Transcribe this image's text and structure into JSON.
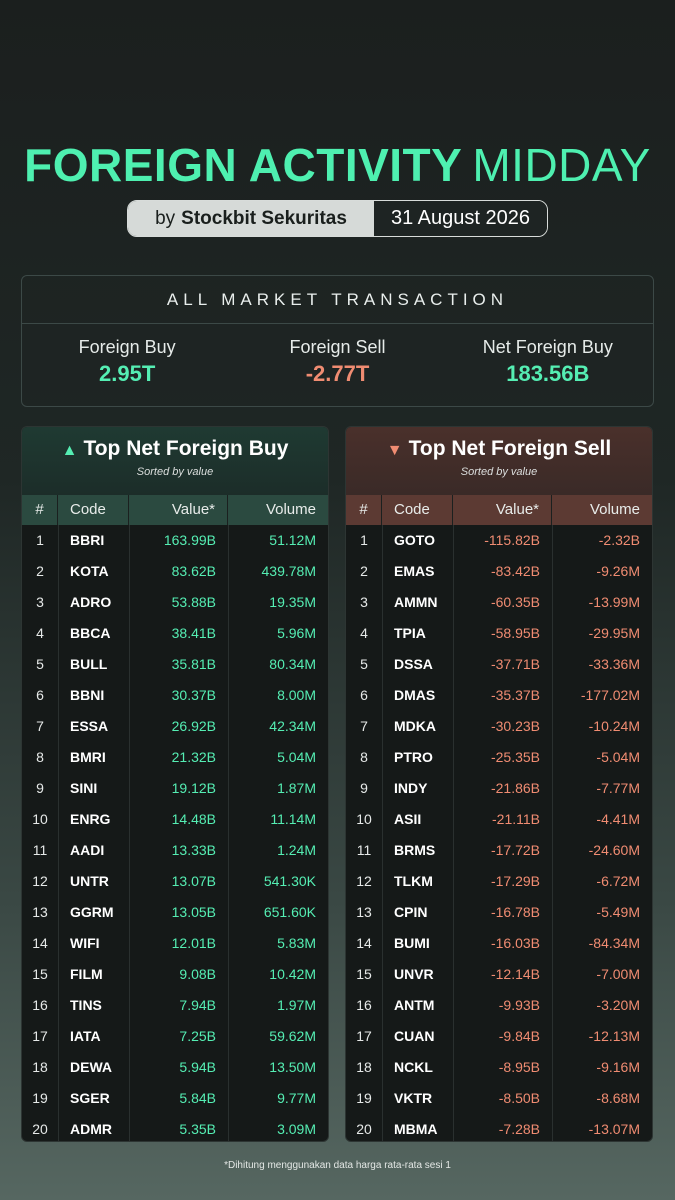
{
  "header": {
    "title_bold": "FOREIGN ACTIVITY",
    "title_light": "MIDDAY",
    "by_prefix": "by",
    "by_brand": "Stockbit Sekuritas",
    "date": "31 August 2026"
  },
  "summary": {
    "heading": "ALL MARKET TRANSACTION",
    "items": [
      {
        "label": "Foreign Buy",
        "value": "2.95T",
        "color": "#55eeb3"
      },
      {
        "label": "Foreign Sell",
        "value": "-2.77T",
        "color": "#f08c72"
      },
      {
        "label": "Net Foreign Buy",
        "value": "183.56B",
        "color": "#55eeb3"
      }
    ]
  },
  "buy": {
    "title": "Top Net Foreign Buy",
    "icon": "up-triangle-icon",
    "subtitle": "Sorted by value",
    "accent": "#55eeb3",
    "columns": [
      "#",
      "Code",
      "Value*",
      "Volume"
    ],
    "rows": [
      [
        "1",
        "BBRI",
        "163.99B",
        "51.12M"
      ],
      [
        "2",
        "KOTA",
        "83.62B",
        "439.78M"
      ],
      [
        "3",
        "ADRO",
        "53.88B",
        "19.35M"
      ],
      [
        "4",
        "BBCA",
        "38.41B",
        "5.96M"
      ],
      [
        "5",
        "BULL",
        "35.81B",
        "80.34M"
      ],
      [
        "6",
        "BBNI",
        "30.37B",
        "8.00M"
      ],
      [
        "7",
        "ESSA",
        "26.92B",
        "42.34M"
      ],
      [
        "8",
        "BMRI",
        "21.32B",
        "5.04M"
      ],
      [
        "9",
        "SINI",
        "19.12B",
        "1.87M"
      ],
      [
        "10",
        "ENRG",
        "14.48B",
        "11.14M"
      ],
      [
        "11",
        "AADI",
        "13.33B",
        "1.24M"
      ],
      [
        "12",
        "UNTR",
        "13.07B",
        "541.30K"
      ],
      [
        "13",
        "GGRM",
        "13.05B",
        "651.60K"
      ],
      [
        "14",
        "WIFI",
        "12.01B",
        "5.83M"
      ],
      [
        "15",
        "FILM",
        "9.08B",
        "10.42M"
      ],
      [
        "16",
        "TINS",
        "7.94B",
        "1.97M"
      ],
      [
        "17",
        "IATA",
        "7.25B",
        "59.62M"
      ],
      [
        "18",
        "DEWA",
        "5.94B",
        "13.50M"
      ],
      [
        "19",
        "SGER",
        "5.84B",
        "9.77M"
      ],
      [
        "20",
        "ADMR",
        "5.35B",
        "3.09M"
      ]
    ]
  },
  "sell": {
    "title": "Top Net Foreign Sell",
    "icon": "down-triangle-icon",
    "subtitle": "Sorted by value",
    "accent": "#f08c72",
    "columns": [
      "#",
      "Code",
      "Value*",
      "Volume"
    ],
    "rows": [
      [
        "1",
        "GOTO",
        "-115.82B",
        "-2.32B"
      ],
      [
        "2",
        "EMAS",
        "-83.42B",
        "-9.26M"
      ],
      [
        "3",
        "AMMN",
        "-60.35B",
        "-13.99M"
      ],
      [
        "4",
        "TPIA",
        "-58.95B",
        "-29.95M"
      ],
      [
        "5",
        "DSSA",
        "-37.71B",
        "-33.36M"
      ],
      [
        "6",
        "DMAS",
        "-35.37B",
        "-177.02M"
      ],
      [
        "7",
        "MDKA",
        "-30.23B",
        "-10.24M"
      ],
      [
        "8",
        "PTRO",
        "-25.35B",
        "-5.04M"
      ],
      [
        "9",
        "INDY",
        "-21.86B",
        "-7.77M"
      ],
      [
        "10",
        "ASII",
        "-21.11B",
        "-4.41M"
      ],
      [
        "11",
        "BRMS",
        "-17.72B",
        "-24.60M"
      ],
      [
        "12",
        "TLKM",
        "-17.29B",
        "-6.72M"
      ],
      [
        "13",
        "CPIN",
        "-16.78B",
        "-5.49M"
      ],
      [
        "14",
        "BUMI",
        "-16.03B",
        "-84.34M"
      ],
      [
        "15",
        "UNVR",
        "-12.14B",
        "-7.00M"
      ],
      [
        "16",
        "ANTM",
        "-9.93B",
        "-3.20M"
      ],
      [
        "17",
        "CUAN",
        "-9.84B",
        "-12.13M"
      ],
      [
        "18",
        "NCKL",
        "-8.95B",
        "-9.16M"
      ],
      [
        "19",
        "VKTR",
        "-8.50B",
        "-8.68M"
      ],
      [
        "20",
        "MBMA",
        "-7.28B",
        "-13.07M"
      ]
    ]
  },
  "footnote": "*Dihitung menggunakan data harga rata-rata sesi 1"
}
